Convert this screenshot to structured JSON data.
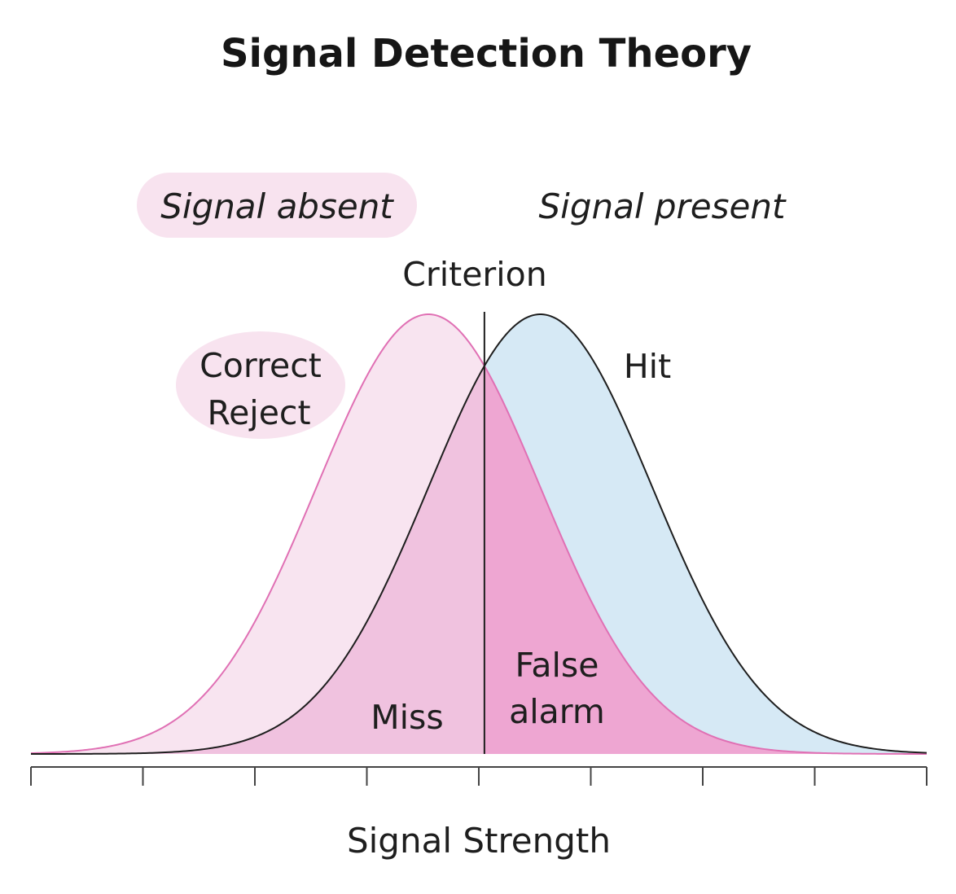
{
  "title": "Signal Detection Theory",
  "legend": {
    "signal_absent": "Signal absent",
    "signal_present": "Signal present"
  },
  "criterion_label": "Criterion",
  "regions": {
    "correct_reject": [
      "Correct",
      "Reject"
    ],
    "hit": "Hit",
    "miss": "Miss",
    "false_alarm": [
      "False",
      "alarm"
    ]
  },
  "x_axis_label": "Signal Strength",
  "colors": {
    "absent_fill": "#f8e4f0",
    "absent_stroke": "#e070b4",
    "present_fill": "#d6e9f5",
    "present_stroke": "#1e1e1e",
    "miss_fill": "#f0c2df",
    "false_alarm_fill": "#eea6d2",
    "label_highlight": "#f8e3ef",
    "axis": "#444444"
  },
  "chart_data": {
    "type": "area",
    "distributions": [
      {
        "id": "absent",
        "mean": -0.45,
        "sd": 1.0
      },
      {
        "id": "present",
        "mean": 0.55,
        "sd": 1.0
      }
    ],
    "criterion": 0.05,
    "xlim": [
      -4.0,
      4.0
    ],
    "tick_count": 9
  }
}
